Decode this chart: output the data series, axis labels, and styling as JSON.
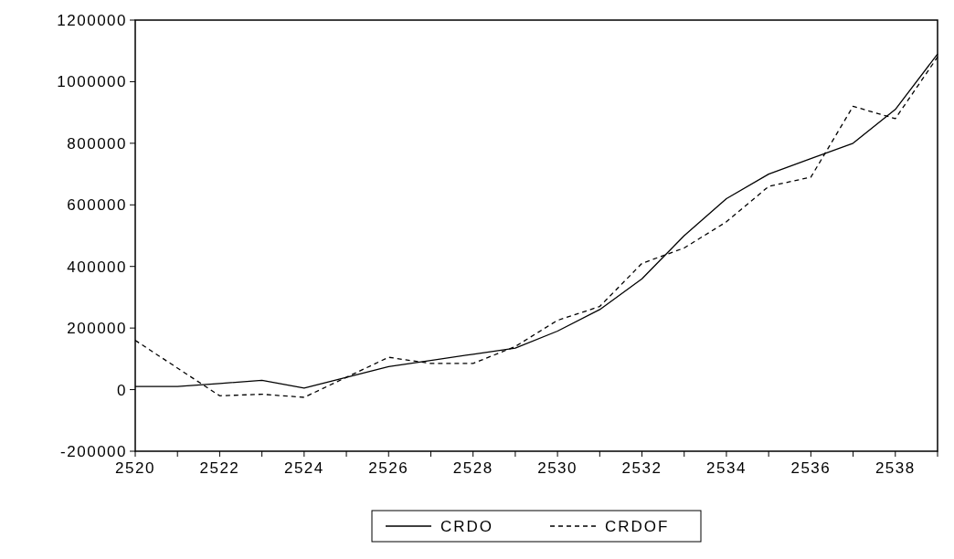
{
  "chart_data": {
    "type": "line",
    "x": [
      2520,
      2521,
      2522,
      2523,
      2524,
      2525,
      2526,
      2527,
      2528,
      2529,
      2530,
      2531,
      2532,
      2533,
      2534,
      2535,
      2536,
      2537,
      2538,
      2539
    ],
    "series": [
      {
        "name": "CRDO",
        "color": "#000000",
        "line_style": "solid",
        "values": [
          10000,
          10000,
          20000,
          30000,
          5000,
          40000,
          75000,
          95000,
          115000,
          135000,
          190000,
          260000,
          360000,
          500000,
          620000,
          700000,
          750000,
          800000,
          910000,
          1090000
        ]
      },
      {
        "name": "CRDOF",
        "color": "#000000",
        "line_style": "dashed",
        "values": [
          160000,
          70000,
          -20000,
          -15000,
          -25000,
          40000,
          105000,
          85000,
          85000,
          140000,
          225000,
          270000,
          410000,
          460000,
          545000,
          660000,
          690000,
          920000,
          880000,
          1080000
        ]
      }
    ],
    "xlim": [
      2520,
      2539
    ],
    "xticks": [
      2520,
      {
        "value": 2521,
        "label": null
      },
      2522,
      {
        "value": 2523,
        "label": null
      },
      2524,
      {
        "value": 2525,
        "label": null
      },
      2526,
      {
        "value": 2527,
        "label": null
      },
      2528,
      {
        "value": 2529,
        "label": null
      },
      2530,
      {
        "value": 2531,
        "label": null
      },
      2532,
      {
        "value": 2533,
        "label": null
      },
      2534,
      {
        "value": 2535,
        "label": null
      },
      2536,
      {
        "value": 2537,
        "label": null
      },
      2538,
      {
        "value": 2539,
        "label": null
      }
    ],
    "ylim": [
      -200000,
      1200000
    ],
    "yticks": [
      -200000,
      0,
      200000,
      400000,
      600000,
      800000,
      1000000,
      1200000
    ],
    "grid": false,
    "legend": "bottom"
  }
}
